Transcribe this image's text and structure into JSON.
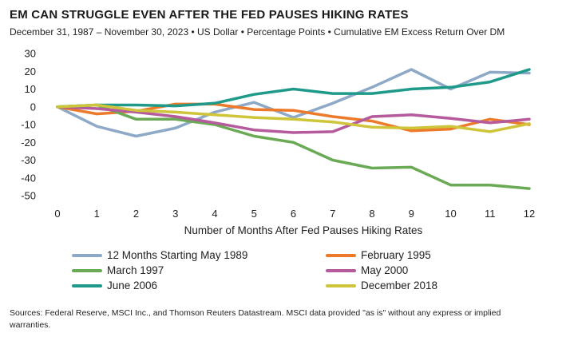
{
  "title": "EM CAN STRUGGLE EVEN AFTER THE FED PAUSES HIKING RATES",
  "subtitle": "December 31, 1987 – November 30, 2023 • US Dollar • Percentage Points • Cumulative EM Excess Return Over DM",
  "source": "Sources: Federal Reserve, MSCI Inc., and Thomson Reuters Datastream. MSCI data provided \"as is\" without any express or implied warranties.",
  "chart_data": {
    "type": "line",
    "title": "EM CAN STRUGGLE EVEN AFTER THE FED PAUSES HIKING RATES",
    "xlabel": "Number of Months After Fed Pauses Hiking Rates",
    "ylabel": "",
    "x": [
      0,
      1,
      2,
      3,
      4,
      5,
      6,
      7,
      8,
      9,
      10,
      11,
      12
    ],
    "ylim": [
      -50,
      30
    ],
    "yticks": [
      30,
      20,
      10,
      0,
      -10,
      -20,
      -30,
      -40,
      -50
    ],
    "grid": false,
    "legend_position": "bottom",
    "series": [
      {
        "name": "12 Months Starting May 1989",
        "color": "#8ea9c8",
        "values": [
          0,
          -11,
          -16.5,
          -12,
          -3,
          2.5,
          -6,
          2,
          11,
          21,
          10,
          19.5,
          19
        ]
      },
      {
        "name": "February 1995",
        "color": "#ec7a2a",
        "values": [
          0,
          -4,
          -2.5,
          1.5,
          1.5,
          -1.5,
          -2,
          -5.5,
          -8,
          -13.5,
          -12.5,
          -7,
          -10
        ]
      },
      {
        "name": "March 1997",
        "color": "#6aaa55",
        "values": [
          0,
          1,
          -7,
          -7,
          -10,
          -16.5,
          -20,
          -30,
          -34.5,
          -34,
          -44,
          -44,
          -46
        ]
      },
      {
        "name": "May 2000",
        "color": "#b55a9c",
        "values": [
          0,
          -1,
          -3,
          -5.5,
          -9,
          -13,
          -14.5,
          -14,
          -5.5,
          -4.5,
          -6.5,
          -9,
          -7
        ]
      },
      {
        "name": "June 2006",
        "color": "#1f9a8a",
        "values": [
          0,
          1,
          1,
          0.5,
          2,
          7,
          10,
          7.5,
          7.5,
          10,
          11,
          14,
          21
        ]
      },
      {
        "name": "December 2018",
        "color": "#cfc53a",
        "values": [
          0,
          1,
          -2,
          -3,
          -4.5,
          -6,
          -7,
          -8.5,
          -11.5,
          -12,
          -11,
          -14,
          -9.5
        ]
      }
    ]
  }
}
